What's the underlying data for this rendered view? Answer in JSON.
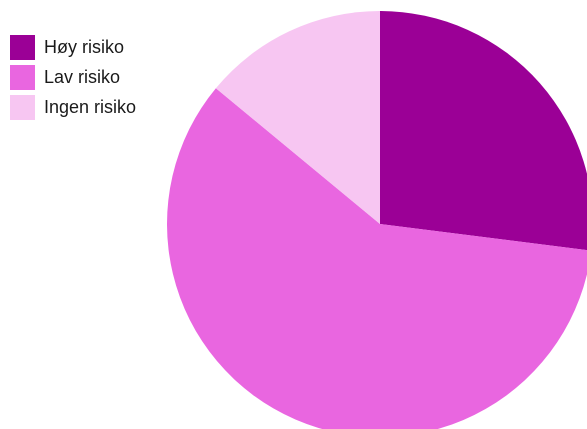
{
  "chart_data": {
    "type": "pie",
    "title": "",
    "categories": [
      "Høy risiko",
      "Lav risiko",
      "Ingen risiko"
    ],
    "values": [
      27,
      59,
      14
    ],
    "colors": [
      "#9b0096",
      "#e966e0",
      "#f7c6f2"
    ],
    "start_angle_deg": 0,
    "direction": "clockwise",
    "legend_position": "top-left"
  }
}
